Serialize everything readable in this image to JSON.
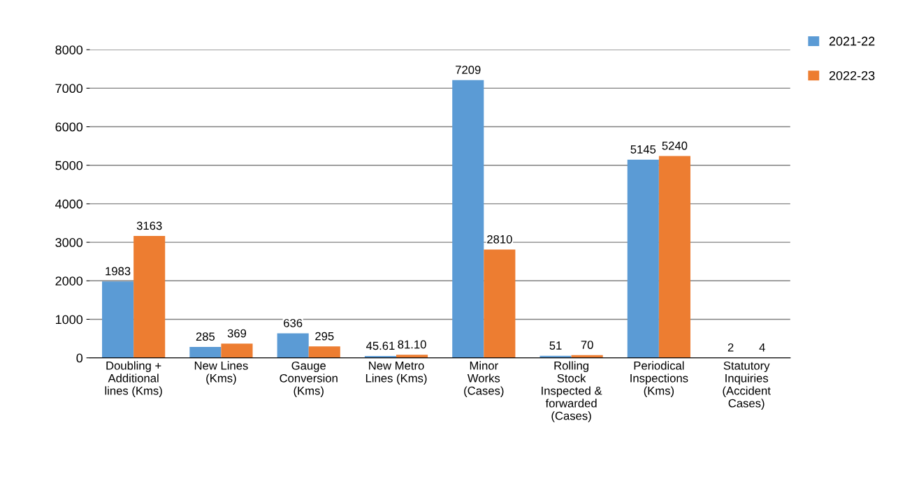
{
  "chart_data": {
    "type": "bar",
    "categories": [
      "Doubling +\nAdditional\nlines (Kms)",
      "New Lines\n(Kms)",
      "Gauge\nConversion\n(Kms)",
      "New Metro\nLines (Kms)",
      "Minor\nWorks\n(Cases)",
      "Rolling\nStock\nInspected &\nforwarded\n(Cases)",
      "Periodical\nInspections\n(Kms)",
      "Statutory\nInquiries\n(Accident\nCases)"
    ],
    "series": [
      {
        "name": "2021-22",
        "color": "#5b9bd5",
        "values": [
          1983,
          285,
          636,
          45.61,
          7209,
          51,
          5145,
          2
        ],
        "value_labels": [
          "1983",
          "285",
          "636",
          "45.61",
          "7209",
          "51",
          "5145",
          "2"
        ]
      },
      {
        "name": "2022-23",
        "color": "#ed7d31",
        "values": [
          3163,
          369,
          295,
          81.1,
          2810,
          70,
          5240,
          4
        ],
        "value_labels": [
          "3163",
          "369",
          "295",
          "81.10",
          "2810",
          "70",
          "5240",
          "4"
        ]
      }
    ],
    "ylim": [
      0,
      8000
    ],
    "yticks": [
      0,
      1000,
      2000,
      3000,
      4000,
      5000,
      6000,
      7000,
      8000
    ],
    "grid": "y",
    "legend": "top right"
  }
}
